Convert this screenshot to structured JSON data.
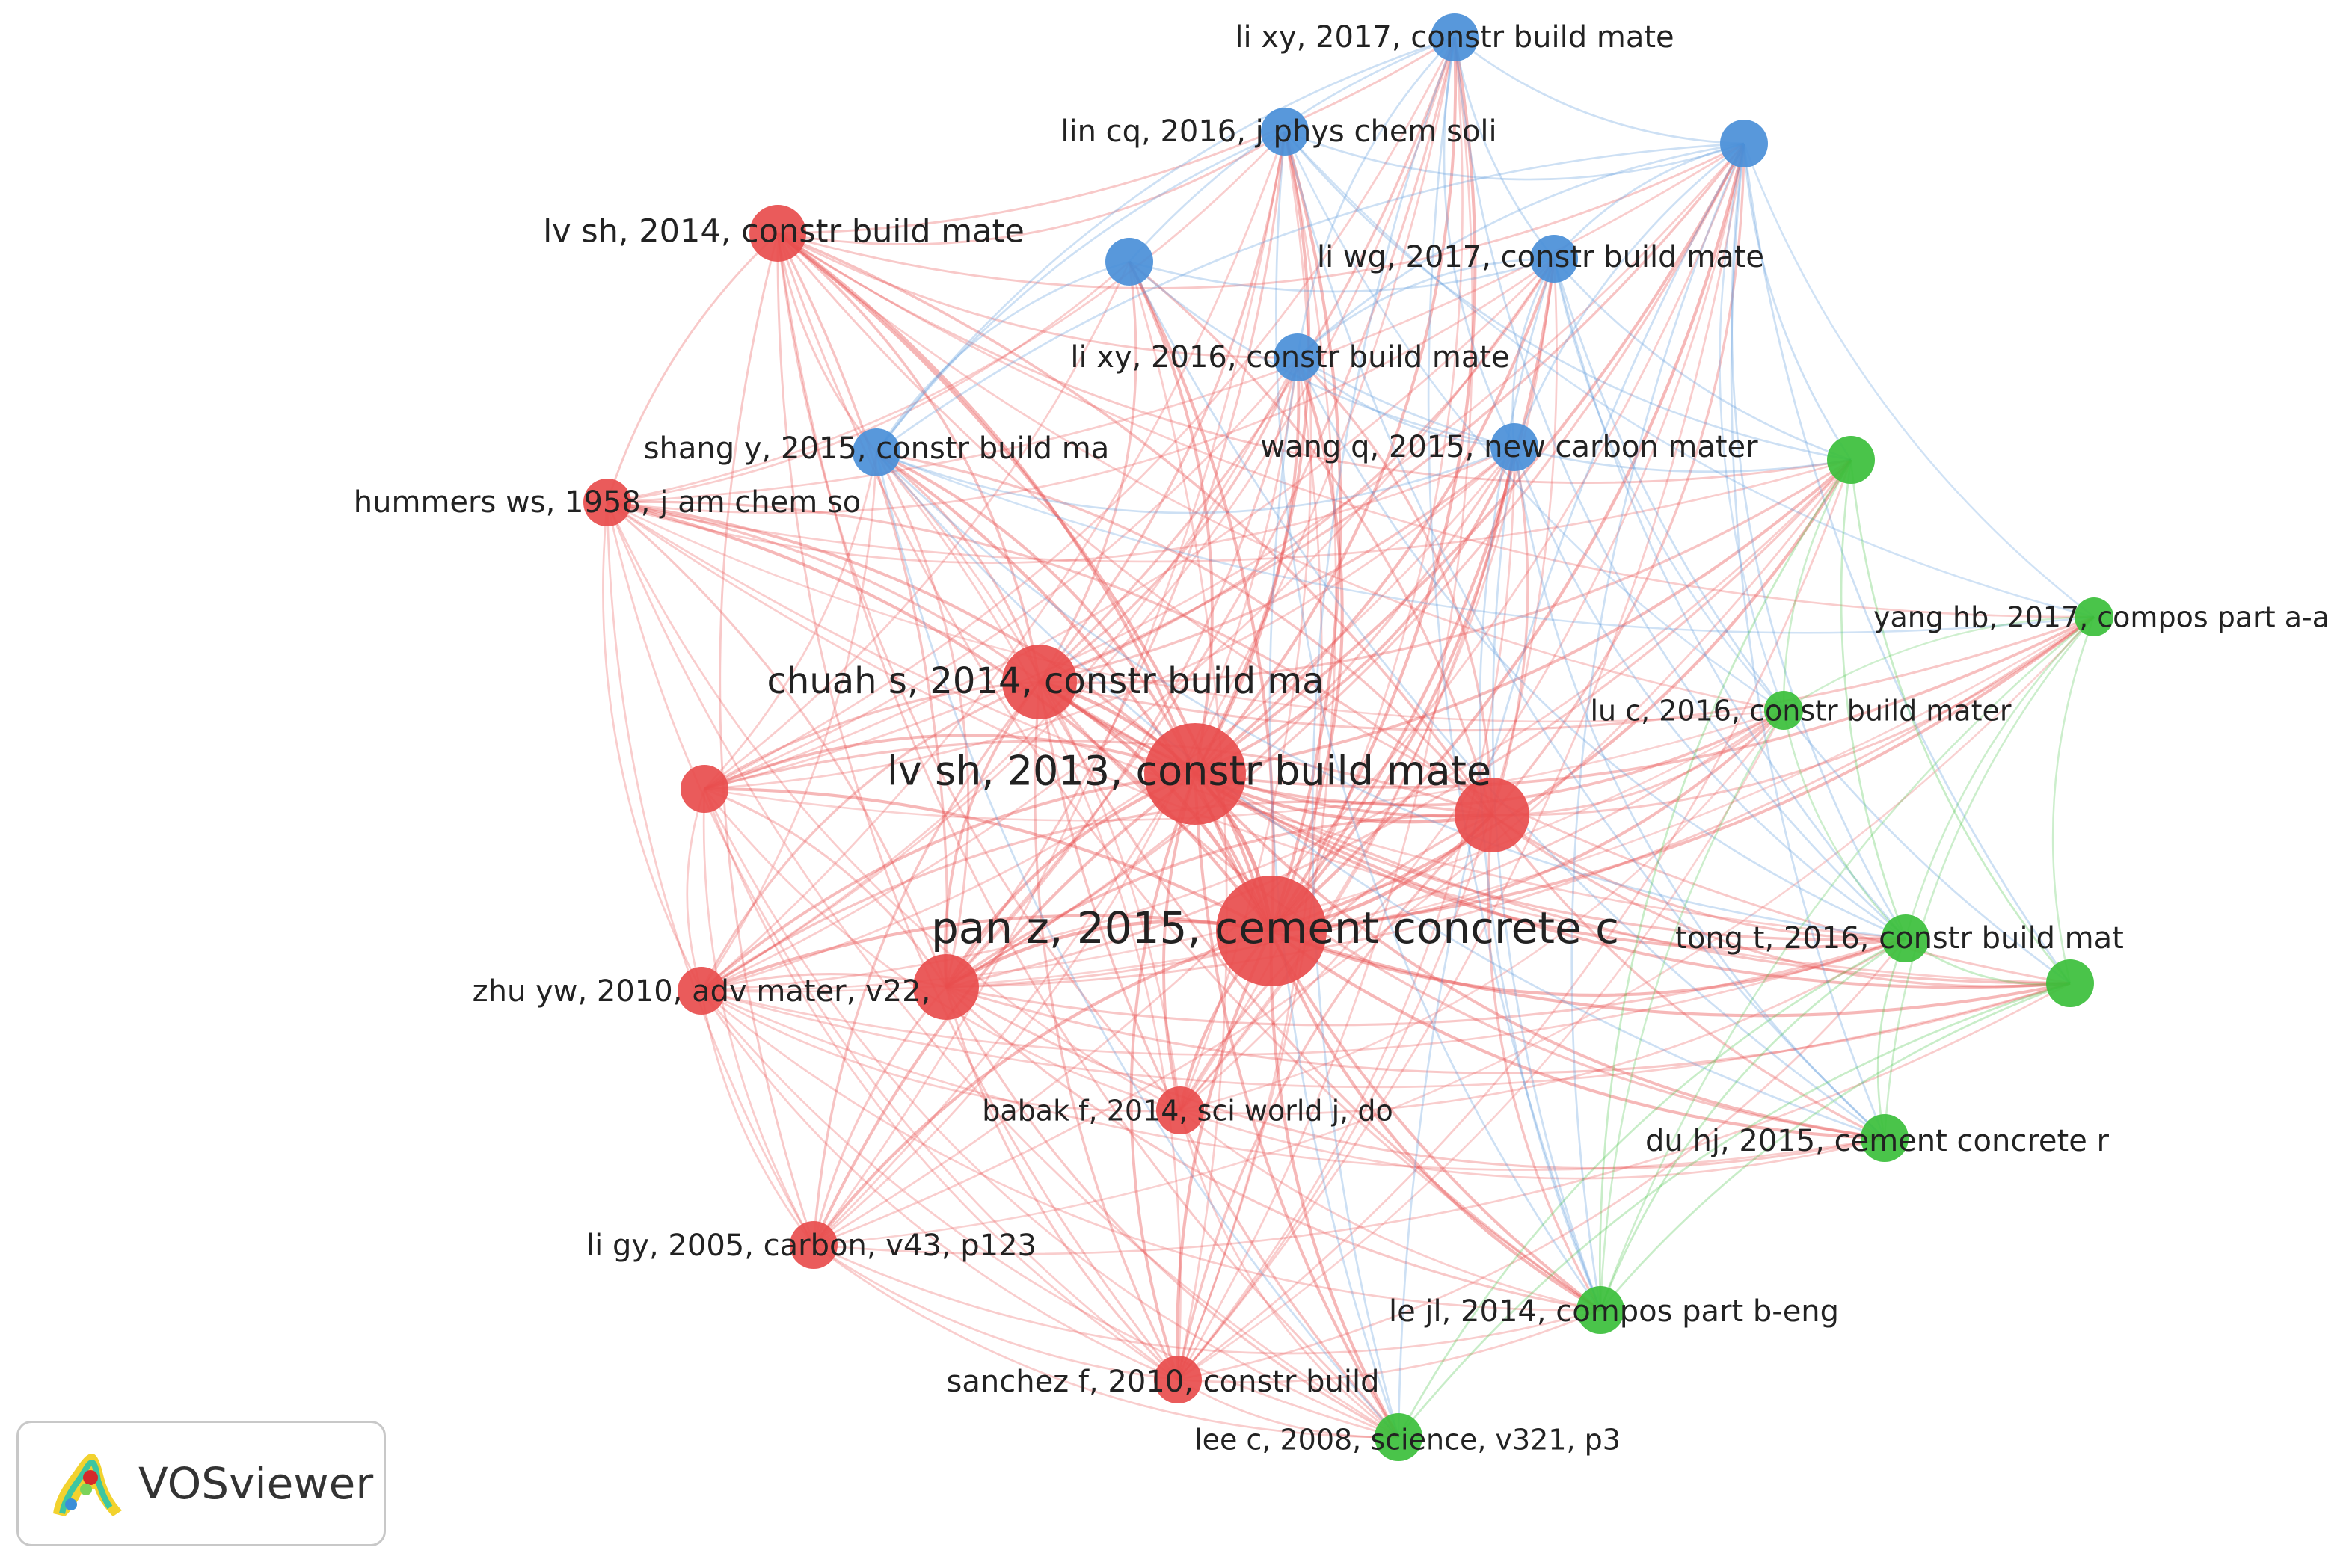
{
  "colors": {
    "cluster_red": "#e84d4d",
    "cluster_green": "#3bbf3b",
    "cluster_blue": "#4a8fd8"
  },
  "network": {
    "nodes": [
      {
        "id": "pan2015",
        "label": "pan z, 2015, cement concrete c",
        "cluster": "red",
        "weight": 10
      },
      {
        "id": "lv2013",
        "label": "lv sh, 2013, constr build mate",
        "cluster": "red",
        "weight": 9
      },
      {
        "id": "chuah2014",
        "label": "chuah s, 2014, constr build ma",
        "cluster": "red",
        "weight": 6
      },
      {
        "id": "red_unl1",
        "label": "",
        "cluster": "red",
        "weight": 6
      },
      {
        "id": "red_unl2",
        "label": "",
        "cluster": "red",
        "weight": 5
      },
      {
        "id": "lv2014",
        "label": "lv sh, 2014, constr build mate",
        "cluster": "red",
        "weight": 4
      },
      {
        "id": "hummers1958",
        "label": "hummers ws, 1958, j am chem so",
        "cluster": "red",
        "weight": 3
      },
      {
        "id": "red_unl3",
        "label": "",
        "cluster": "red",
        "weight": 3
      },
      {
        "id": "zhu2010",
        "label": "zhu yw, 2010, adv mater, v22,",
        "cluster": "red",
        "weight": 3
      },
      {
        "id": "babak2014",
        "label": "babak f, 2014, sci world j, do",
        "cluster": "red",
        "weight": 3
      },
      {
        "id": "ligy2005",
        "label": "li gy, 2005, carbon, v43, p123",
        "cluster": "red",
        "weight": 3
      },
      {
        "id": "sanchez2010",
        "label": "sanchez f, 2010, constr build",
        "cluster": "red",
        "weight": 3
      },
      {
        "id": "lixy2017",
        "label": "li xy, 2017, constr build mate",
        "cluster": "blue",
        "weight": 3
      },
      {
        "id": "lincq2016",
        "label": "lin cq, 2016, j phys chem soli",
        "cluster": "blue",
        "weight": 3
      },
      {
        "id": "blue_unl1",
        "label": "",
        "cluster": "blue",
        "weight": 3
      },
      {
        "id": "blue_unl2",
        "label": "",
        "cluster": "blue",
        "weight": 3
      },
      {
        "id": "liwg2017",
        "label": "li wg, 2017, constr build mate",
        "cluster": "blue",
        "weight": 3
      },
      {
        "id": "lixy2016",
        "label": "li xy, 2016, constr build mate",
        "cluster": "blue",
        "weight": 3
      },
      {
        "id": "shang2015",
        "label": "shang y, 2015, constr build ma",
        "cluster": "blue",
        "weight": 3
      },
      {
        "id": "wang2015",
        "label": "wang q, 2015, new carbon mater",
        "cluster": "blue",
        "weight": 3
      },
      {
        "id": "green_unl1",
        "label": "",
        "cluster": "green",
        "weight": 3
      },
      {
        "id": "yang2017",
        "label": "yang hb, 2017, compos part a-a",
        "cluster": "green",
        "weight": 2
      },
      {
        "id": "luc2016",
        "label": "lu c, 2016, constr build mater",
        "cluster": "green",
        "weight": 2
      },
      {
        "id": "tong2016",
        "label": "tong t, 2016, constr build mat",
        "cluster": "green",
        "weight": 3
      },
      {
        "id": "green_unl2",
        "label": "",
        "cluster": "green",
        "weight": 3
      },
      {
        "id": "du2015",
        "label": "du hj, 2015, cement concrete r",
        "cluster": "green",
        "weight": 3
      },
      {
        "id": "le2014",
        "label": "le jl, 2014, compos part b-eng",
        "cluster": "green",
        "weight": 3
      },
      {
        "id": "lee2008",
        "label": "lee c, 2008, science, v321, p3",
        "cluster": "green",
        "weight": 3
      }
    ]
  },
  "logo": {
    "text": "VOSviewer"
  }
}
